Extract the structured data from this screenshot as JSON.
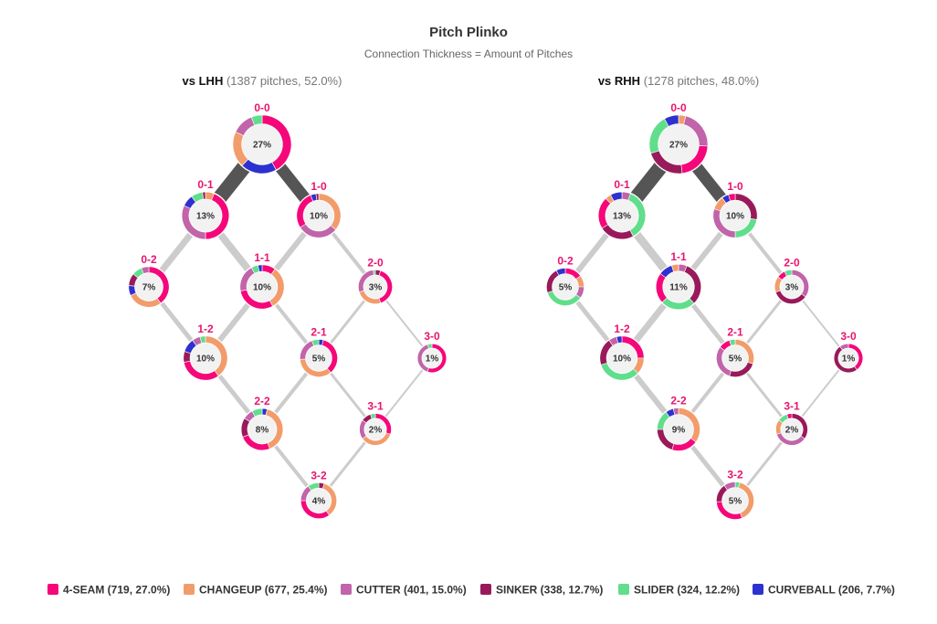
{
  "title": "Pitch Plinko",
  "subtitle": "Connection Thickness = Amount of Pitches",
  "colors": {
    "4-SEAM": "#f5077a",
    "CHANGEUP": "#f29c6b",
    "CUTTER": "#c164a9",
    "SINKER": "#991a5a",
    "SLIDER": "#60de8c",
    "CURVEBALL": "#2d31d0",
    "count_label": "#e8146e",
    "connection": "#555555",
    "connection_light": "#cccccc",
    "center": "#f2f2f2"
  },
  "legend": [
    {
      "pitch": "4-SEAM",
      "label": "4-SEAM (719, 27.0%)"
    },
    {
      "pitch": "CHANGEUP",
      "label": "CHANGEUP (677, 25.4%)"
    },
    {
      "pitch": "CUTTER",
      "label": "CUTTER (401, 15.0%)"
    },
    {
      "pitch": "SINKER",
      "label": "SINKER (338, 12.7%)"
    },
    {
      "pitch": "SLIDER",
      "label": "SLIDER (324, 12.2%)"
    },
    {
      "pitch": "CURVEBALL",
      "label": "CURVEBALL (206, 7.7%)"
    }
  ],
  "chart_data": [
    {
      "type": "plinko-donut",
      "panel_title_bold": "vs LHH",
      "panel_title_light": "(1387 pitches, 52.0%)",
      "nodes": [
        {
          "count": "0-0",
          "pct": 27,
          "label": "27%",
          "mix": {
            "4-SEAM": 0.42,
            "CURVEBALL": 0.2,
            "CHANGEUP": 0.2,
            "CUTTER": 0.12,
            "SLIDER": 0.06
          }
        },
        {
          "count": "0-1",
          "pct": 13,
          "label": "13%",
          "mix": {
            "CHANGEUP": 0.06,
            "4-SEAM": 0.44,
            "CUTTER": 0.32,
            "CURVEBALL": 0.08,
            "SLIDER": 0.08,
            "SINKER": 0.02
          }
        },
        {
          "count": "1-0",
          "pct": 10,
          "label": "10%",
          "mix": {
            "CHANGEUP": 0.36,
            "CUTTER": 0.3,
            "4-SEAM": 0.28,
            "CURVEBALL": 0.04,
            "SINKER": 0.02
          }
        },
        {
          "count": "0-2",
          "pct": 7,
          "label": "7%",
          "mix": {
            "4-SEAM": 0.4,
            "CHANGEUP": 0.28,
            "CURVEBALL": 0.08,
            "SINKER": 0.1,
            "SLIDER": 0.08,
            "CUTTER": 0.06
          }
        },
        {
          "count": "1-1",
          "pct": 10,
          "label": "10%",
          "mix": {
            "4-SEAM": 0.1,
            "CHANGEUP": 0.32,
            "4-SEAM_2": 0.3,
            "CUTTER": 0.2,
            "SLIDER": 0.05,
            "CURVEBALL": 0.03
          }
        },
        {
          "count": "2-0",
          "pct": 3,
          "label": "3%",
          "mix": {
            "SINKER": 0.05,
            "4-SEAM": 0.4,
            "CHANGEUP": 0.25,
            "CUTTER": 0.28,
            "SLIDER": 0.02
          }
        },
        {
          "count": "1-2",
          "pct": 10,
          "label": "10%",
          "mix": {
            "CHANGEUP": 0.4,
            "4-SEAM": 0.32,
            "SINKER": 0.08,
            "CURVEBALL": 0.1,
            "CUTTER": 0.06,
            "SLIDER": 0.04
          }
        },
        {
          "count": "2-1",
          "pct": 5,
          "label": "5%",
          "mix": {
            "CURVEBALL": 0.04,
            "4-SEAM": 0.35,
            "CHANGEUP": 0.35,
            "CUTTER": 0.2,
            "SLIDER": 0.06
          }
        },
        {
          "count": "3-0",
          "pct": 1,
          "label": "1%",
          "mix": {
            "4-SEAM": 0.55,
            "CUTTER": 0.4,
            "SLIDER": 0.05
          }
        },
        {
          "count": "2-2",
          "pct": 8,
          "label": "8%",
          "mix": {
            "CURVEBALL": 0.04,
            "CHANGEUP": 0.4,
            "4-SEAM": 0.25,
            "SINKER": 0.15,
            "CUTTER": 0.08,
            "SLIDER": 0.08
          }
        },
        {
          "count": "3-1",
          "pct": 2,
          "label": "2%",
          "mix": {
            "4-SEAM": 0.3,
            "CHANGEUP": 0.35,
            "CUTTER": 0.2,
            "SINKER": 0.1,
            "SLIDER": 0.05
          }
        },
        {
          "count": "3-2",
          "pct": 4,
          "label": "4%",
          "mix": {
            "SINKER": 0.05,
            "CHANGEUP": 0.35,
            "4-SEAM": 0.35,
            "CUTTER": 0.15,
            "SLIDER": 0.1
          }
        }
      ],
      "edges": [
        {
          "from": "0-0",
          "to": "0-1",
          "weight": 0.15,
          "shade": "dark"
        },
        {
          "from": "0-0",
          "to": "1-0",
          "weight": 0.12,
          "shade": "dark"
        },
        {
          "from": "0-1",
          "to": "0-2",
          "weight": 0.06,
          "shade": "light"
        },
        {
          "from": "0-1",
          "to": "1-1",
          "weight": 0.07,
          "shade": "light"
        },
        {
          "from": "1-0",
          "to": "1-1",
          "weight": 0.05,
          "shade": "light"
        },
        {
          "from": "1-0",
          "to": "2-0",
          "weight": 0.03,
          "shade": "light"
        },
        {
          "from": "0-2",
          "to": "1-2",
          "weight": 0.04,
          "shade": "light"
        },
        {
          "from": "1-1",
          "to": "1-2",
          "weight": 0.05,
          "shade": "light"
        },
        {
          "from": "1-1",
          "to": "2-1",
          "weight": 0.03,
          "shade": "light"
        },
        {
          "from": "2-0",
          "to": "2-1",
          "weight": 0.02,
          "shade": "light"
        },
        {
          "from": "2-0",
          "to": "3-0",
          "weight": 0.01,
          "shade": "light"
        },
        {
          "from": "1-2",
          "to": "2-2",
          "weight": 0.04,
          "shade": "light"
        },
        {
          "from": "2-1",
          "to": "2-2",
          "weight": 0.03,
          "shade": "light"
        },
        {
          "from": "2-1",
          "to": "3-1",
          "weight": 0.02,
          "shade": "light"
        },
        {
          "from": "3-0",
          "to": "3-1",
          "weight": 0.01,
          "shade": "light"
        },
        {
          "from": "2-2",
          "to": "3-2",
          "weight": 0.03,
          "shade": "light"
        },
        {
          "from": "3-1",
          "to": "3-2",
          "weight": 0.02,
          "shade": "light"
        }
      ]
    },
    {
      "type": "plinko-donut",
      "panel_title_bold": "vs RHH",
      "panel_title_light": "(1278 pitches, 48.0%)",
      "nodes": [
        {
          "count": "0-0",
          "pct": 27,
          "label": "27%",
          "mix": {
            "CHANGEUP": 0.04,
            "CUTTER": 0.22,
            "4-SEAM": 0.22,
            "SINKER": 0.22,
            "SLIDER": 0.22,
            "CURVEBALL": 0.08
          }
        },
        {
          "count": "0-1",
          "pct": 13,
          "label": "13%",
          "mix": {
            "CUTTER": 0.06,
            "SLIDER": 0.36,
            "SINKER": 0.24,
            "4-SEAM": 0.22,
            "CHANGEUP": 0.04,
            "CURVEBALL": 0.08
          }
        },
        {
          "count": "1-0",
          "pct": 10,
          "label": "10%",
          "mix": {
            "SINKER": 0.28,
            "SLIDER": 0.22,
            "CUTTER": 0.3,
            "CHANGEUP": 0.1,
            "CURVEBALL": 0.05,
            "4-SEAM": 0.05
          }
        },
        {
          "count": "0-2",
          "pct": 5,
          "label": "5%",
          "mix": {
            "4-SEAM": 0.15,
            "CHANGEUP": 0.1,
            "CUTTER": 0.1,
            "SLIDER": 0.35,
            "SINKER": 0.22,
            "CURVEBALL": 0.08
          }
        },
        {
          "count": "1-1",
          "pct": 11,
          "label": "11%",
          "mix": {
            "CUTTER": 0.06,
            "SINKER": 0.32,
            "SLIDER": 0.25,
            "4-SEAM": 0.22,
            "CURVEBALL": 0.1,
            "CHANGEUP": 0.05
          }
        },
        {
          "count": "2-0",
          "pct": 3,
          "label": "3%",
          "mix": {
            "CUTTER": 0.35,
            "SINKER": 0.35,
            "CHANGEUP": 0.15,
            "4-SEAM": 0.08,
            "SLIDER": 0.07
          }
        },
        {
          "count": "1-2",
          "pct": 10,
          "label": "10%",
          "mix": {
            "4-SEAM": 0.25,
            "CHANGEUP": 0.12,
            "SLIDER": 0.33,
            "SINKER": 0.2,
            "CUTTER": 0.06,
            "CURVEBALL": 0.04
          }
        },
        {
          "count": "2-1",
          "pct": 5,
          "label": "5%",
          "mix": {
            "CHANGEUP": 0.3,
            "SINKER": 0.25,
            "CUTTER": 0.3,
            "4-SEAM": 0.1,
            "SLIDER": 0.05
          }
        },
        {
          "count": "3-0",
          "pct": 1,
          "label": "1%",
          "mix": {
            "4-SEAM": 0.4,
            "SINKER": 0.5,
            "CUTTER": 0.1
          }
        },
        {
          "count": "2-2",
          "pct": 9,
          "label": "9%",
          "mix": {
            "CHANGEUP": 0.35,
            "4-SEAM": 0.2,
            "SINKER": 0.2,
            "SLIDER": 0.15,
            "CURVEBALL": 0.06,
            "CUTTER": 0.04
          }
        },
        {
          "count": "3-1",
          "pct": 2,
          "label": "2%",
          "mix": {
            "SINKER": 0.35,
            "CUTTER": 0.35,
            "CHANGEUP": 0.15,
            "SLIDER": 0.1,
            "4-SEAM": 0.05
          }
        },
        {
          "count": "3-2",
          "pct": 5,
          "label": "5%",
          "mix": {
            "SLIDER": 0.04,
            "CHANGEUP": 0.4,
            "4-SEAM": 0.3,
            "SINKER": 0.16,
            "CUTTER": 0.1
          }
        }
      ],
      "edges": [
        {
          "from": "0-0",
          "to": "0-1",
          "weight": 0.15,
          "shade": "dark"
        },
        {
          "from": "0-0",
          "to": "1-0",
          "weight": 0.12,
          "shade": "dark"
        },
        {
          "from": "0-1",
          "to": "0-2",
          "weight": 0.05,
          "shade": "light"
        },
        {
          "from": "0-1",
          "to": "1-1",
          "weight": 0.08,
          "shade": "light"
        },
        {
          "from": "1-0",
          "to": "1-1",
          "weight": 0.05,
          "shade": "light"
        },
        {
          "from": "1-0",
          "to": "2-0",
          "weight": 0.03,
          "shade": "light"
        },
        {
          "from": "0-2",
          "to": "1-2",
          "weight": 0.04,
          "shade": "light"
        },
        {
          "from": "1-1",
          "to": "1-2",
          "weight": 0.06,
          "shade": "light"
        },
        {
          "from": "1-1",
          "to": "2-1",
          "weight": 0.04,
          "shade": "light"
        },
        {
          "from": "2-0",
          "to": "2-1",
          "weight": 0.02,
          "shade": "light"
        },
        {
          "from": "2-0",
          "to": "3-0",
          "weight": 0.01,
          "shade": "light"
        },
        {
          "from": "1-2",
          "to": "2-2",
          "weight": 0.05,
          "shade": "light"
        },
        {
          "from": "2-1",
          "to": "2-2",
          "weight": 0.03,
          "shade": "light"
        },
        {
          "from": "2-1",
          "to": "3-1",
          "weight": 0.02,
          "shade": "light"
        },
        {
          "from": "3-0",
          "to": "3-1",
          "weight": 0.01,
          "shade": "light"
        },
        {
          "from": "2-2",
          "to": "3-2",
          "weight": 0.04,
          "shade": "light"
        },
        {
          "from": "3-1",
          "to": "3-2",
          "weight": 0.02,
          "shade": "light"
        }
      ]
    }
  ]
}
